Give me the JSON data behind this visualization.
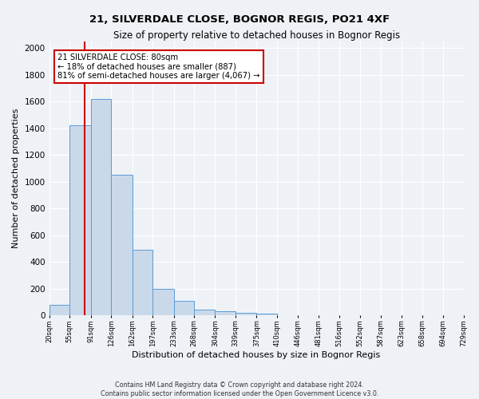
{
  "title1": "21, SILVERDALE CLOSE, BOGNOR REGIS, PO21 4XF",
  "title2": "Size of property relative to detached houses in Bognor Regis",
  "xlabel": "Distribution of detached houses by size in Bognor Regis",
  "ylabel": "Number of detached properties",
  "footer": "Contains HM Land Registry data © Crown copyright and database right 2024.\nContains public sector information licensed under the Open Government Licence v3.0.",
  "bin_edges": [
    20,
    55,
    91,
    126,
    162,
    197,
    233,
    268,
    304,
    339,
    375,
    410,
    446,
    481,
    516,
    552,
    587,
    623,
    658,
    694,
    729
  ],
  "bar_heights": [
    80,
    1420,
    1620,
    1050,
    490,
    200,
    105,
    40,
    28,
    20,
    15,
    0,
    0,
    0,
    0,
    0,
    0,
    0,
    0,
    0
  ],
  "bar_color": "#c9d9ea",
  "bar_edge_color": "#5b9bd5",
  "property_size": 80,
  "annotation_text": "21 SILVERDALE CLOSE: 80sqm\n← 18% of detached houses are smaller (887)\n81% of semi-detached houses are larger (4,067) →",
  "annotation_box_color": "#ffffff",
  "annotation_box_edge": "#cc0000",
  "vline_color": "#cc0000",
  "ylim": [
    0,
    2050
  ],
  "yticks": [
    0,
    200,
    400,
    600,
    800,
    1000,
    1200,
    1400,
    1600,
    1800,
    2000
  ],
  "background_color": "#eef2f7",
  "grid_color": "#ffffff"
}
